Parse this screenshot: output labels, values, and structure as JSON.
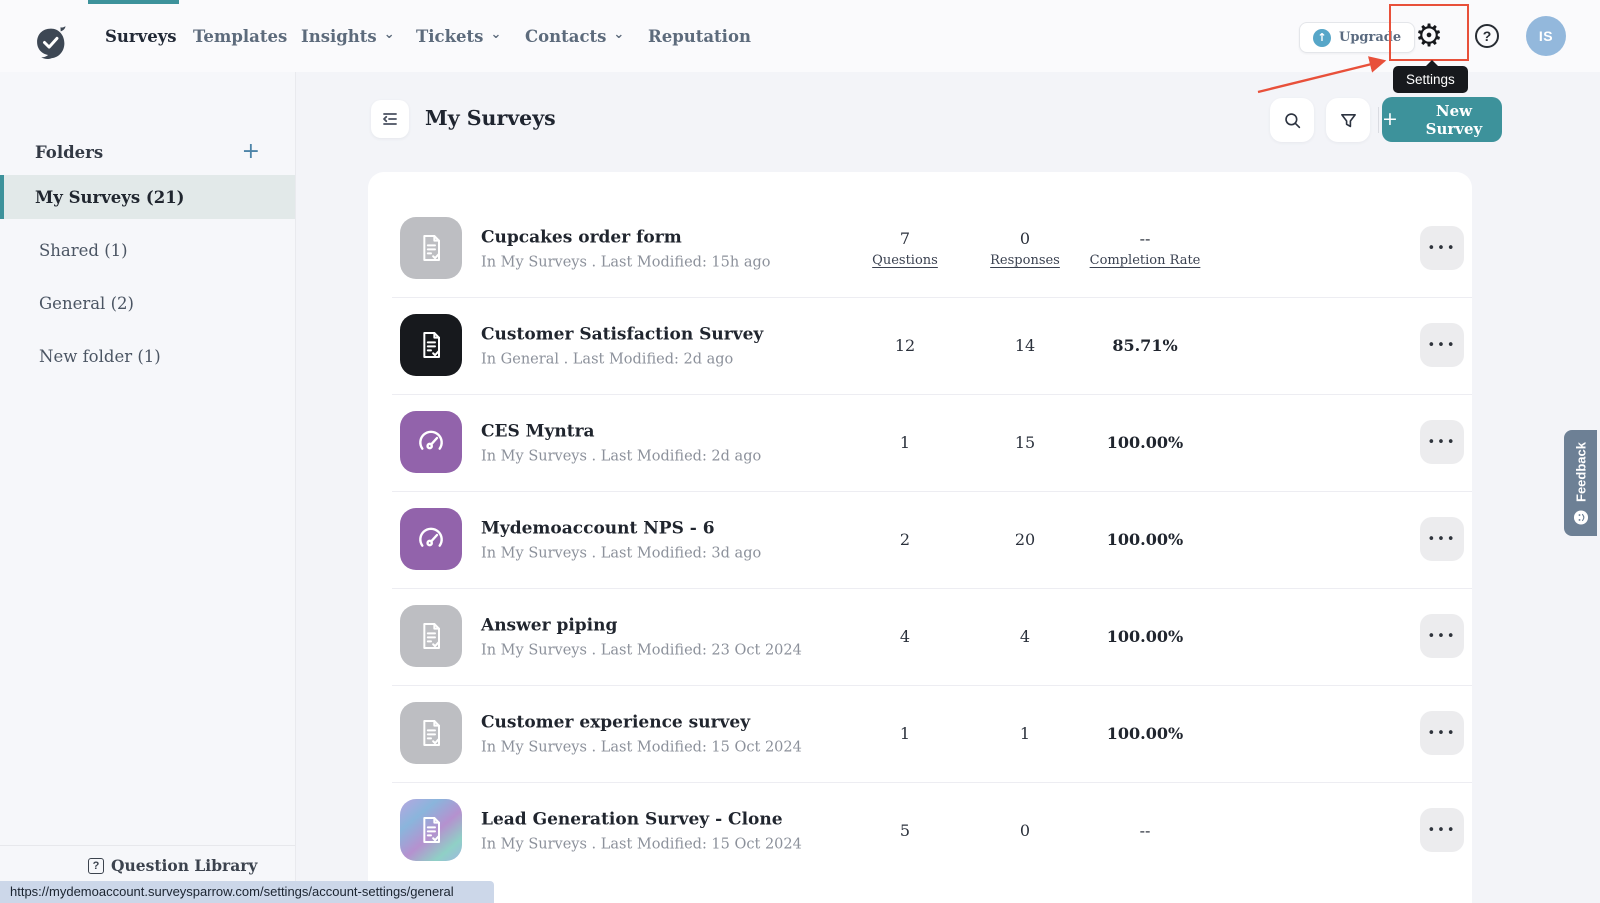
{
  "topbar": {
    "nav": [
      {
        "label": "Surveys",
        "active": true
      },
      {
        "label": "Templates"
      },
      {
        "label": "Insights",
        "chevron": true
      },
      {
        "label": "Tickets",
        "chevron": true
      },
      {
        "label": "Contacts",
        "chevron": true
      },
      {
        "label": "Reputation"
      }
    ],
    "upgrade_label": "Upgrade",
    "settings_tooltip": "Settings",
    "avatar_initials": "IS"
  },
  "sidebar": {
    "folders_title": "Folders",
    "items": [
      {
        "label": "My Surveys (21)",
        "active": true
      },
      {
        "label": "Shared (1)"
      },
      {
        "label": "General (2)"
      },
      {
        "label": "New folder (1)"
      }
    ],
    "question_library_label": "Question Library"
  },
  "main": {
    "title": "My Surveys",
    "new_survey_label": "New Survey",
    "column_labels": {
      "questions": "Questions",
      "responses": "Responses",
      "completion": "Completion Rate"
    },
    "rows": [
      {
        "title": "Cupcakes order form",
        "meta": "In My Surveys . Last Modified: 15h ago",
        "questions": "7",
        "responses": "0",
        "completion": "--",
        "icon": "document",
        "icon_style": "gray"
      },
      {
        "title": "Customer Satisfaction Survey",
        "meta": "In General . Last Modified: 2d ago",
        "questions": "12",
        "responses": "14",
        "completion": "85.71%",
        "icon": "document",
        "icon_style": "black"
      },
      {
        "title": "CES Myntra",
        "meta": "In My Surveys . Last Modified: 2d ago",
        "questions": "1",
        "responses": "15",
        "completion": "100.00%",
        "icon": "gauge",
        "icon_style": "purple"
      },
      {
        "title": "Mydemoaccount NPS - 6",
        "meta": "In My Surveys . Last Modified: 3d ago",
        "questions": "2",
        "responses": "20",
        "completion": "100.00%",
        "icon": "gauge",
        "icon_style": "purple"
      },
      {
        "title": "Answer piping",
        "meta": "In My Surveys . Last Modified: 23 Oct 2024",
        "questions": "4",
        "responses": "4",
        "completion": "100.00%",
        "icon": "document",
        "icon_style": "gray"
      },
      {
        "title": "Customer experience survey",
        "meta": "In My Surveys . Last Modified: 15 Oct 2024",
        "questions": "1",
        "responses": "1",
        "completion": "100.00%",
        "icon": "document",
        "icon_style": "gray"
      },
      {
        "title": "Lead Generation Survey - Clone",
        "meta": "In My Surveys . Last Modified: 15 Oct 2024",
        "questions": "5",
        "responses": "0",
        "completion": "--",
        "icon": "document",
        "icon_style": "gradient"
      }
    ]
  },
  "feedback_label": "Feedback",
  "status_bar": {
    "url": "https://mydemoaccount.surveysparrow.com/settings/account-settings/general"
  },
  "glyphs": {
    "plus": "+",
    "up_arrow": "↑",
    "gear": "⚙",
    "help": "?",
    "ellipsis": "•••",
    "chevron_down": "⌄",
    "question_box": "?"
  },
  "colors": {
    "accent_teal": "#3D929B",
    "annotation_red": "#E8503A",
    "avatar_blue": "#93B8DC",
    "feedback_tab": "#6D8095"
  }
}
